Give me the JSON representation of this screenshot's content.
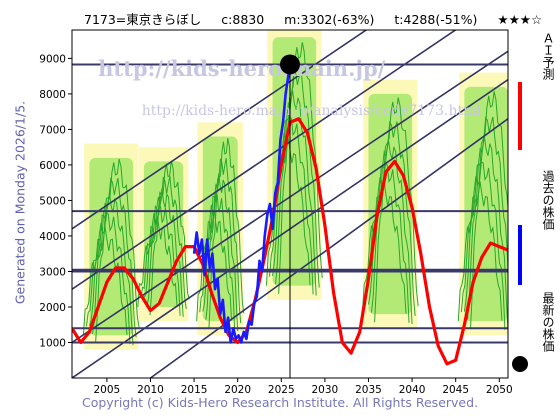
{
  "header": {
    "title": "7173=東京きらぼし",
    "current": "c:8830",
    "middle": "m:3302(-63%)",
    "target": "t:4288(-51%)",
    "stars": "★★★☆"
  },
  "side_note": "Generated on Monday 2026/1/5.",
  "footer": "Copyright (c) Kids-Hero Research Institute. All Rights Reserved.",
  "watermark": {
    "line1": "http://kids-hero.main.jp/",
    "line2": "http://kids-hero.main.jp/analysis/code7173.html"
  },
  "legend": [
    {
      "label": "ＡＩ予測",
      "color": "#ff0000"
    },
    {
      "label": "過去の株価",
      "color": "#0000ff"
    },
    {
      "label": "最新の株価",
      "color": "#000000"
    }
  ],
  "colors": {
    "prediction": "#ff0000",
    "past": "#1a1aff",
    "latest": "#000000",
    "band": "#33bb33",
    "trend": "#333366"
  },
  "chart_data": {
    "type": "line",
    "title": "7173=東京きらぼし",
    "xlim": [
      2001,
      2051
    ],
    "ylim": [
      0,
      9800
    ],
    "x_ticks": [
      2005,
      2010,
      2015,
      2020,
      2025,
      2030,
      2035,
      2040,
      2045,
      2050
    ],
    "y_ticks": [
      1000,
      2000,
      3000,
      4000,
      5000,
      6000,
      7000,
      8000,
      9000
    ],
    "horizontal_lines": [
      1000,
      1400,
      3000,
      3050,
      4700,
      8830
    ],
    "latest_point": {
      "x": 2026.0,
      "y": 8830
    },
    "series": [
      {
        "name": "ＡＩ予測",
        "color": "#ff0000",
        "x": [
          2001,
          2002,
          2003,
          2004,
          2005,
          2006,
          2007,
          2008,
          2009,
          2010,
          2011,
          2012,
          2013,
          2014,
          2015,
          2016,
          2017,
          2018,
          2019,
          2020,
          2021,
          2022,
          2023,
          2024,
          2025,
          2026,
          2027,
          2028,
          2029,
          2030,
          2031,
          2032,
          2033,
          2034,
          2035,
          2036,
          2037,
          2038,
          2039,
          2040,
          2041,
          2042,
          2043,
          2044,
          2045,
          2046,
          2047,
          2048,
          2049,
          2050,
          2051
        ],
        "values": [
          1400,
          1000,
          1300,
          2000,
          2700,
          3100,
          3100,
          2800,
          2300,
          1900,
          2100,
          2700,
          3300,
          3700,
          3700,
          3200,
          2400,
          1700,
          1200,
          1000,
          1300,
          2200,
          3300,
          4500,
          6000,
          7200,
          7300,
          6900,
          5900,
          4300,
          2400,
          1000,
          700,
          1300,
          2800,
          4600,
          5800,
          6100,
          5700,
          4800,
          3500,
          2000,
          900,
          400,
          500,
          1500,
          2700,
          3400,
          3800,
          3700,
          3600
        ]
      },
      {
        "name": "過去の株価",
        "color": "#1a1aff",
        "x": [
          2015.0,
          2015.3,
          2015.6,
          2015.9,
          2016.2,
          2016.5,
          2016.8,
          2017.1,
          2017.4,
          2017.7,
          2018.0,
          2018.3,
          2018.6,
          2018.9,
          2019.2,
          2019.5,
          2019.8,
          2020.1,
          2020.4,
          2020.7,
          2021.0,
          2021.3,
          2021.6,
          2021.9,
          2022.2,
          2022.5,
          2022.8,
          2023.1,
          2023.4,
          2023.7,
          2024.0,
          2024.3,
          2024.6,
          2024.9,
          2025.2,
          2025.5,
          2025.8,
          2026.0
        ],
        "values": [
          3500,
          4100,
          3500,
          3900,
          2900,
          3900,
          3100,
          3500,
          2500,
          2800,
          1800,
          2200,
          1300,
          1700,
          1000,
          1400,
          1100,
          1200,
          1000,
          1300,
          1100,
          1600,
          1500,
          2100,
          2300,
          3300,
          3000,
          4000,
          4600,
          4900,
          4200,
          5200,
          5500,
          6700,
          7200,
          8000,
          8500,
          8830
        ]
      }
    ],
    "green_bands": [
      {
        "center": 2005.5,
        "width": 5.0,
        "bottom": 1200,
        "top": 6200
      },
      {
        "center": 2011.5,
        "width": 4.5,
        "bottom": 2000,
        "top": 6100
      },
      {
        "center": 2018.0,
        "width": 4.0,
        "bottom": 1600,
        "top": 6800
      },
      {
        "center": 2026.5,
        "width": 5.0,
        "bottom": 2600,
        "top": 9600
      },
      {
        "center": 2037.5,
        "width": 5.0,
        "bottom": 1800,
        "top": 8000
      },
      {
        "center": 2048.5,
        "width": 5.0,
        "bottom": 1600,
        "top": 8200
      }
    ]
  }
}
